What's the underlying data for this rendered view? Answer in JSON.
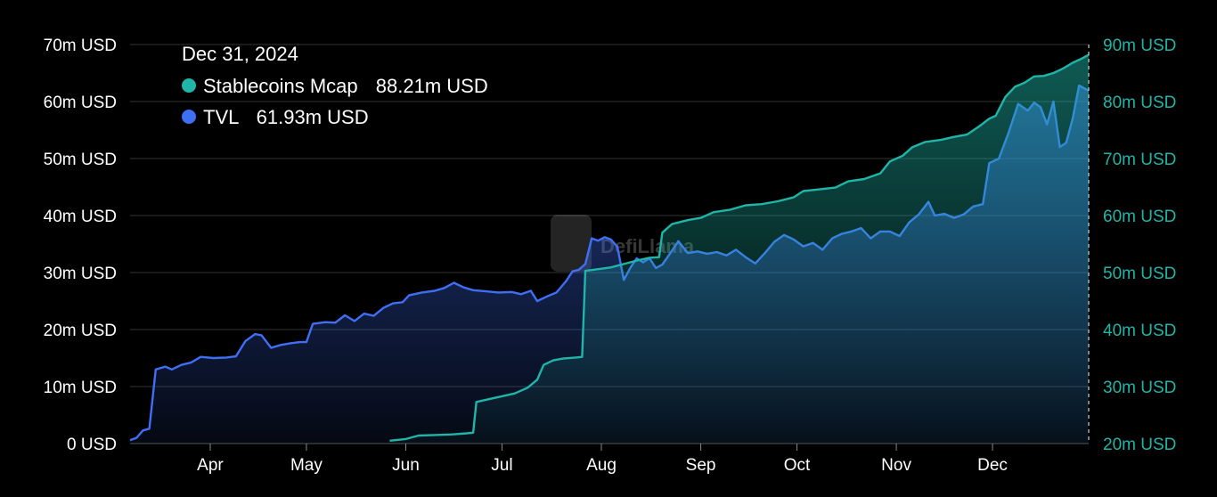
{
  "chart_data": {
    "type": "area",
    "x_ticks": [
      "Apr",
      "May",
      "Jun",
      "Jul",
      "Aug",
      "Sep",
      "Oct",
      "Nov",
      "Dec"
    ],
    "y_left": {
      "min": 0,
      "max": 70,
      "step": 10,
      "unit": "m USD",
      "tick_labels": [
        "0 USD",
        "10m USD",
        "20m USD",
        "30m USD",
        "40m USD",
        "50m USD",
        "60m USD",
        "70m USD"
      ]
    },
    "y_right": {
      "min": 20,
      "max": 90,
      "step": 10,
      "unit": "m USD",
      "tick_labels": [
        "20m USD",
        "30m USD",
        "40m USD",
        "50m USD",
        "60m USD",
        "70m USD",
        "80m USD",
        "90m USD"
      ]
    },
    "x_range": [
      "2024-03-07",
      "2024-12-31"
    ],
    "grid": true,
    "legend": "top-left",
    "tooltip": {
      "date": "Dec 31, 2024",
      "entries": [
        {
          "label": "Stablecoins Mcap",
          "value": "88.21m USD",
          "color": "#1fb5a8"
        },
        {
          "label": "TVL",
          "value": "61.93m USD",
          "color": "#3f6ff5"
        }
      ]
    },
    "watermark": "DefiLlama",
    "series": [
      {
        "name": "TVL",
        "axis": "left",
        "color": "#3f6ff5",
        "points": [
          [
            "2024-03-07",
            0.6
          ],
          [
            "2024-03-09",
            1.0
          ],
          [
            "2024-03-11",
            2.3
          ],
          [
            "2024-03-13",
            2.6
          ],
          [
            "2024-03-15",
            13.0
          ],
          [
            "2024-03-18",
            13.5
          ],
          [
            "2024-03-20",
            13.0
          ],
          [
            "2024-03-23",
            13.8
          ],
          [
            "2024-03-26",
            14.2
          ],
          [
            "2024-03-29",
            15.2
          ],
          [
            "2024-04-02",
            15.0
          ],
          [
            "2024-04-06",
            15.1
          ],
          [
            "2024-04-09",
            15.3
          ],
          [
            "2024-04-12",
            18.0
          ],
          [
            "2024-04-15",
            19.2
          ],
          [
            "2024-04-17",
            19.0
          ],
          [
            "2024-04-20",
            16.8
          ],
          [
            "2024-04-23",
            17.3
          ],
          [
            "2024-04-26",
            17.6
          ],
          [
            "2024-04-29",
            17.8
          ],
          [
            "2024-05-01",
            17.8
          ],
          [
            "2024-05-03",
            21.0
          ],
          [
            "2024-05-07",
            21.3
          ],
          [
            "2024-05-10",
            21.2
          ],
          [
            "2024-05-13",
            22.5
          ],
          [
            "2024-05-16",
            21.5
          ],
          [
            "2024-05-19",
            22.8
          ],
          [
            "2024-05-22",
            22.4
          ],
          [
            "2024-05-25",
            23.8
          ],
          [
            "2024-05-28",
            24.6
          ],
          [
            "2024-05-31",
            24.8
          ],
          [
            "2024-06-02",
            26.0
          ],
          [
            "2024-06-06",
            26.5
          ],
          [
            "2024-06-10",
            26.8
          ],
          [
            "2024-06-13",
            27.3
          ],
          [
            "2024-06-16",
            28.2
          ],
          [
            "2024-06-19",
            27.4
          ],
          [
            "2024-06-22",
            26.9
          ],
          [
            "2024-06-26",
            26.7
          ],
          [
            "2024-06-30",
            26.5
          ],
          [
            "2024-07-04",
            26.6
          ],
          [
            "2024-07-07",
            26.2
          ],
          [
            "2024-07-10",
            26.8
          ],
          [
            "2024-07-12",
            25.0
          ],
          [
            "2024-07-15",
            25.8
          ],
          [
            "2024-07-18",
            26.5
          ],
          [
            "2024-07-21",
            28.5
          ],
          [
            "2024-07-23",
            30.2
          ],
          [
            "2024-07-25",
            30.5
          ],
          [
            "2024-07-27",
            31.5
          ],
          [
            "2024-07-29",
            36.0
          ],
          [
            "2024-07-31",
            35.6
          ],
          [
            "2024-08-02",
            36.2
          ],
          [
            "2024-08-04",
            35.8
          ],
          [
            "2024-08-06",
            34.5
          ],
          [
            "2024-08-08",
            28.7
          ],
          [
            "2024-08-10",
            30.8
          ],
          [
            "2024-08-12",
            32.5
          ],
          [
            "2024-08-14",
            31.8
          ],
          [
            "2024-08-16",
            32.5
          ],
          [
            "2024-08-18",
            30.8
          ],
          [
            "2024-08-20",
            31.4
          ],
          [
            "2024-08-22",
            33.0
          ],
          [
            "2024-08-25",
            35.5
          ],
          [
            "2024-08-28",
            33.4
          ],
          [
            "2024-08-31",
            33.7
          ],
          [
            "2024-09-03",
            33.3
          ],
          [
            "2024-09-06",
            33.6
          ],
          [
            "2024-09-09",
            33.0
          ],
          [
            "2024-09-12",
            34.0
          ],
          [
            "2024-09-15",
            32.7
          ],
          [
            "2024-09-18",
            31.6
          ],
          [
            "2024-09-21",
            33.4
          ],
          [
            "2024-09-24",
            35.4
          ],
          [
            "2024-09-27",
            36.6
          ],
          [
            "2024-09-30",
            35.8
          ],
          [
            "2024-10-03",
            34.6
          ],
          [
            "2024-10-06",
            35.2
          ],
          [
            "2024-10-09",
            34.0
          ],
          [
            "2024-10-12",
            36.0
          ],
          [
            "2024-10-15",
            36.8
          ],
          [
            "2024-10-18",
            37.2
          ],
          [
            "2024-10-21",
            37.8
          ],
          [
            "2024-10-24",
            36.0
          ],
          [
            "2024-10-27",
            37.2
          ],
          [
            "2024-10-30",
            37.2
          ],
          [
            "2024-11-02",
            36.4
          ],
          [
            "2024-11-05",
            38.8
          ],
          [
            "2024-11-08",
            40.2
          ],
          [
            "2024-11-11",
            42.4
          ],
          [
            "2024-11-13",
            40.0
          ],
          [
            "2024-11-16",
            40.3
          ],
          [
            "2024-11-19",
            39.6
          ],
          [
            "2024-11-22",
            40.2
          ],
          [
            "2024-11-25",
            41.6
          ],
          [
            "2024-11-28",
            42.0
          ],
          [
            "2024-11-30",
            49.2
          ],
          [
            "2024-12-03",
            50.0
          ],
          [
            "2024-12-06",
            54.5
          ],
          [
            "2024-12-09",
            59.6
          ],
          [
            "2024-12-12",
            58.4
          ],
          [
            "2024-12-14",
            59.8
          ],
          [
            "2024-12-16",
            59.0
          ],
          [
            "2024-12-18",
            56.0
          ],
          [
            "2024-12-20",
            60.0
          ],
          [
            "2024-12-22",
            52.0
          ],
          [
            "2024-12-24",
            52.8
          ],
          [
            "2024-12-26",
            57.0
          ],
          [
            "2024-12-28",
            62.8
          ],
          [
            "2024-12-31",
            61.9
          ]
        ]
      },
      {
        "name": "Stablecoins Mcap",
        "axis": "right",
        "color": "#1fb5a8",
        "points": [
          [
            "2024-05-27",
            20.5
          ],
          [
            "2024-06-01",
            20.8
          ],
          [
            "2024-06-05",
            21.4
          ],
          [
            "2024-06-10",
            21.5
          ],
          [
            "2024-06-15",
            21.6
          ],
          [
            "2024-06-20",
            21.8
          ],
          [
            "2024-06-22",
            21.9
          ],
          [
            "2024-06-23",
            27.3
          ],
          [
            "2024-06-27",
            27.8
          ],
          [
            "2024-07-01",
            28.3
          ],
          [
            "2024-07-05",
            28.8
          ],
          [
            "2024-07-09",
            29.8
          ],
          [
            "2024-07-12",
            31.2
          ],
          [
            "2024-07-14",
            33.8
          ],
          [
            "2024-07-17",
            34.6
          ],
          [
            "2024-07-20",
            34.9
          ],
          [
            "2024-07-24",
            35.1
          ],
          [
            "2024-07-26",
            35.2
          ],
          [
            "2024-07-27",
            50.3
          ],
          [
            "2024-07-31",
            50.6
          ],
          [
            "2024-08-04",
            50.9
          ],
          [
            "2024-08-08",
            51.5
          ],
          [
            "2024-08-12",
            52.1
          ],
          [
            "2024-08-16",
            52.6
          ],
          [
            "2024-08-19",
            52.7
          ],
          [
            "2024-08-20",
            57.0
          ],
          [
            "2024-08-23",
            58.5
          ],
          [
            "2024-08-28",
            59.2
          ],
          [
            "2024-09-01",
            59.6
          ],
          [
            "2024-09-05",
            60.6
          ],
          [
            "2024-09-10",
            61.0
          ],
          [
            "2024-09-15",
            61.8
          ],
          [
            "2024-09-20",
            62.0
          ],
          [
            "2024-09-25",
            62.5
          ],
          [
            "2024-09-30",
            63.2
          ],
          [
            "2024-10-03",
            64.3
          ],
          [
            "2024-10-08",
            64.6
          ],
          [
            "2024-10-13",
            64.9
          ],
          [
            "2024-10-17",
            66.0
          ],
          [
            "2024-10-22",
            66.4
          ],
          [
            "2024-10-27",
            67.4
          ],
          [
            "2024-10-30",
            69.5
          ],
          [
            "2024-11-03",
            70.5
          ],
          [
            "2024-11-06",
            72.0
          ],
          [
            "2024-11-10",
            72.9
          ],
          [
            "2024-11-15",
            73.3
          ],
          [
            "2024-11-19",
            73.8
          ],
          [
            "2024-11-23",
            74.2
          ],
          [
            "2024-11-27",
            75.7
          ],
          [
            "2024-11-30",
            77.0
          ],
          [
            "2024-12-02",
            77.5
          ],
          [
            "2024-12-05",
            80.8
          ],
          [
            "2024-12-08",
            82.6
          ],
          [
            "2024-12-11",
            83.3
          ],
          [
            "2024-12-14",
            84.4
          ],
          [
            "2024-12-17",
            84.5
          ],
          [
            "2024-12-20",
            85.0
          ],
          [
            "2024-12-23",
            85.8
          ],
          [
            "2024-12-26",
            86.8
          ],
          [
            "2024-12-29",
            87.6
          ],
          [
            "2024-12-31",
            88.2
          ]
        ]
      }
    ]
  },
  "colors": {
    "background": "#000000",
    "grid": "#333333",
    "tvl": "#3f6ff5",
    "stablecoins": "#1fb5a8",
    "right_axis_text": "#1fb5a8",
    "left_axis_text": "#ffffff"
  }
}
